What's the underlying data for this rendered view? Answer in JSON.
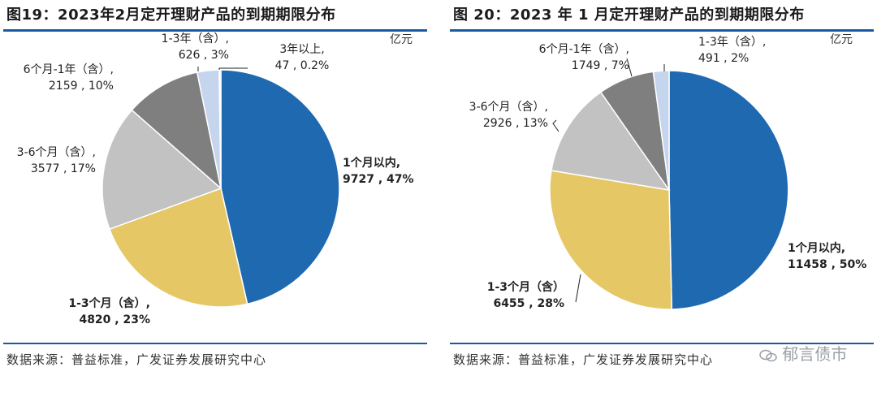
{
  "chart_data": [
    {
      "type": "pie",
      "title": "图19：2023年2月定开理财产品的到期期限分布",
      "unit": "亿元",
      "slices": [
        {
          "category": "1个月以内",
          "value": 9727,
          "percent": "47%",
          "label_line1": "1个月以内,",
          "label_line2": "9727 , 47%",
          "color": "#1f69b1",
          "bold": true
        },
        {
          "category": "1-3个月（含）",
          "value": 4820,
          "percent": "23%",
          "label_line1": "1-3个月（含）,",
          "label_line2": "4820 , 23%",
          "color": "#e5c766",
          "bold": true
        },
        {
          "category": "3-6个月（含）",
          "value": 3577,
          "percent": "17%",
          "label_line1": "3-6个月（含）,",
          "label_line2": "3577 , 17%",
          "color": "#c2c2c2",
          "bold": false
        },
        {
          "category": "6个月-1年（含）",
          "value": 2159,
          "percent": "10%",
          "label_line1": "6个月-1年（含）,",
          "label_line2": "2159 , 10%",
          "color": "#7f7f7f",
          "bold": false
        },
        {
          "category": "1-3年（含）",
          "value": 626,
          "percent": "3%",
          "label_line1": "1-3年（含）,",
          "label_line2": "626 , 3%",
          "color": "#c5d5ee",
          "bold": false
        },
        {
          "category": "3年以上",
          "value": 47,
          "percent": "0.2%",
          "label_line1": "3年以上,",
          "label_line2": "47 , 0.2%",
          "color": "#f4f4f4",
          "bold": false
        }
      ],
      "source": "数据来源：普益标准，广发证券发展研究中心"
    },
    {
      "type": "pie",
      "title": "图 20：2023 年 1 月定开理财产品的到期期限分布",
      "unit": "亿元",
      "slices": [
        {
          "category": "1个月以内",
          "value": 11458,
          "percent": "50%",
          "label_line1": "1个月以内,",
          "label_line2": "11458 , 50%",
          "color": "#1f69b1",
          "bold": true
        },
        {
          "category": "1-3个月（含）",
          "value": 6455,
          "percent": "28%",
          "label_line1": "1-3个月（含）",
          "label_line2": "6455 , 28%",
          "color": "#e5c766",
          "bold": true
        },
        {
          "category": "3-6个月（含）",
          "value": 2926,
          "percent": "13%",
          "label_line1": "3-6个月（含）,",
          "label_line2": "2926 , 13%",
          "color": "#c2c2c2",
          "bold": false
        },
        {
          "category": "6个月-1年（含）",
          "value": 1749,
          "percent": "7%",
          "label_line1": "6个月-1年（含）,",
          "label_line2": "1749 , 7%",
          "color": "#7f7f7f",
          "bold": false
        },
        {
          "category": "1-3年（含）",
          "value": 491,
          "percent": "2%",
          "label_line1": "1-3年（含）,",
          "label_line2": "491 , 2%",
          "color": "#c5d5ee",
          "bold": false
        }
      ],
      "source": "数据来源：普益标准，广发证券发展研究中心"
    }
  ],
  "watermark": {
    "text": "郁言债市"
  }
}
